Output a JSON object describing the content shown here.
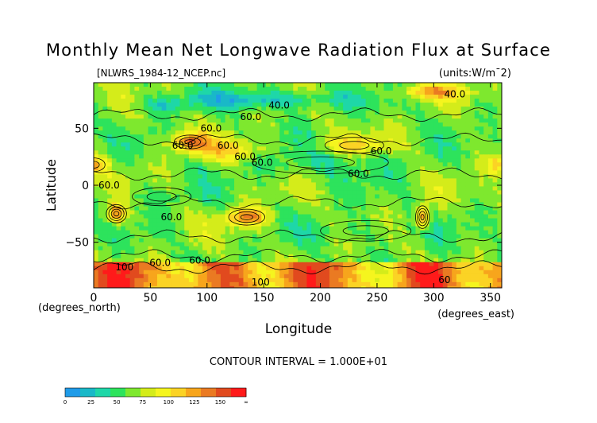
{
  "chart_data": {
    "type": "heatmap",
    "title": "Monthly Mean Net Longwave Radiation Flux at Surface",
    "subtitle": "[NLWRS_1984-12_NCEP.nc]",
    "units_label": "(units:W/m¯2)",
    "xlabel": "Longitude",
    "ylabel": "Latitude",
    "x_unit_label": "(degrees_east)",
    "y_unit_label": "(degrees_north)",
    "xlim": [
      0,
      360
    ],
    "ylim": [
      -90,
      90
    ],
    "x_ticks": [
      0,
      50,
      100,
      150,
      200,
      250,
      300,
      350
    ],
    "y_ticks": [
      50,
      0,
      -50
    ],
    "y_tick_labels": [
      "50",
      "0",
      "−50"
    ],
    "contour_interval_label": "CONTOUR INTERVAL = 1.000E+01",
    "contour_labels": [
      "40.0",
      "60.0",
      "60.0",
      "60.0",
      "60.0",
      "60.0",
      "60.0",
      "60.0",
      "40.0",
      "60.0",
      "60.0",
      "60.0",
      "100",
      "60.0",
      "100",
      "60.0",
      "60"
    ],
    "colorbar": {
      "ticks": [
        "0",
        "25",
        "50",
        "75",
        "100",
        "125",
        "150",
        "∞"
      ],
      "colors": [
        "#1f9be8",
        "#19b8c8",
        "#1ed7a8",
        "#2de35c",
        "#7ee82e",
        "#d4ec1a",
        "#f5f51e",
        "#fbd325",
        "#f7a51c",
        "#ea7a22",
        "#e14a1e",
        "#ff1a1a"
      ]
    }
  }
}
